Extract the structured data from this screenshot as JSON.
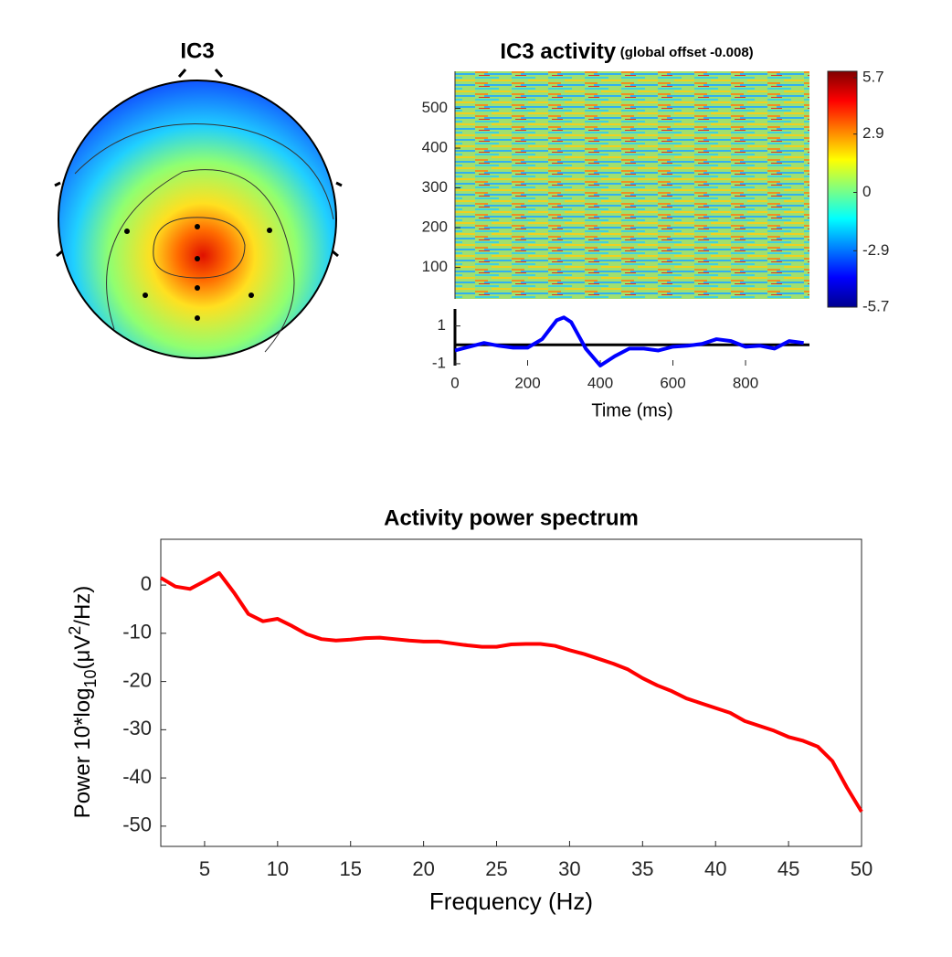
{
  "chart_data": [
    {
      "type": "topomap",
      "title": "IC3"
    },
    {
      "type": "heatmap",
      "title": "IC3 activity",
      "subtitle": "(global offset -0.008)",
      "ylim": [
        21,
        593
      ],
      "yticks": [
        100,
        200,
        300,
        400,
        500
      ],
      "clim": [
        -5.7,
        5.7
      ],
      "cticks": [
        -5.7,
        -2.9,
        0,
        2.9,
        5.7
      ]
    },
    {
      "type": "line",
      "xlabel": "Time (ms)",
      "xlim": [
        0,
        976
      ],
      "ylim": [
        -1.1,
        1.9
      ],
      "xticks": [
        0,
        200,
        400,
        600,
        800
      ],
      "yticks": [
        -1,
        1
      ],
      "baseline": 0,
      "series": [
        {
          "color": "#0000ff",
          "x": [
            0,
            40,
            80,
            120,
            160,
            200,
            240,
            280,
            300,
            320,
            360,
            400,
            440,
            480,
            520,
            560,
            600,
            640,
            680,
            720,
            760,
            800,
            840,
            880,
            920,
            960
          ],
          "values": [
            -0.3,
            -0.1,
            0.1,
            -0.05,
            -0.15,
            -0.15,
            0.3,
            1.3,
            1.45,
            1.2,
            -0.2,
            -1.1,
            -0.6,
            -0.2,
            -0.2,
            -0.3,
            -0.1,
            -0.05,
            0.05,
            0.3,
            0.2,
            -0.1,
            -0.05,
            -0.2,
            0.2,
            0.1
          ]
        }
      ]
    },
    {
      "type": "line",
      "title": "Activity power spectrum",
      "xlabel": "Frequency (Hz)",
      "ylabel": [
        "Power 10*log",
        "10",
        "(μV",
        "2",
        "/Hz)"
      ],
      "xlim": [
        2,
        50
      ],
      "ylim": [
        -54.2,
        9.5
      ],
      "xticks": [
        5,
        10,
        15,
        20,
        25,
        30,
        35,
        40,
        45,
        50
      ],
      "yticks": [
        -50,
        -40,
        -30,
        -20,
        -10,
        0
      ],
      "series": [
        {
          "color": "#ff0000",
          "x": [
            2,
            3,
            4,
            5,
            6,
            7,
            8,
            9,
            10,
            11,
            12,
            13,
            14,
            15,
            16,
            17,
            18,
            19,
            20,
            21,
            22,
            23,
            24,
            25,
            26,
            27,
            28,
            29,
            30,
            31,
            32,
            33,
            34,
            35,
            36,
            37,
            38,
            39,
            40,
            41,
            42,
            43,
            44,
            45,
            46,
            47,
            48,
            49,
            50
          ],
          "values": [
            1.5,
            -0.3,
            -0.8,
            0.8,
            2.5,
            -1.5,
            -6,
            -7.5,
            -7,
            -8.5,
            -10.2,
            -11.2,
            -11.5,
            -11.3,
            -11,
            -10.9,
            -11.2,
            -11.5,
            -11.7,
            -11.7,
            -12.1,
            -12.5,
            -12.8,
            -12.8,
            -12.3,
            -12.2,
            -12.2,
            -12.6,
            -13.5,
            -14.3,
            -15.3,
            -16.3,
            -17.5,
            -19.3,
            -20.8,
            -22,
            -23.5,
            -24.5,
            -25.5,
            -26.5,
            -28.2,
            -29.2,
            -30.2,
            -31.5,
            -32.3,
            -33.5,
            -36.5,
            -42,
            -47
          ]
        }
      ]
    }
  ]
}
